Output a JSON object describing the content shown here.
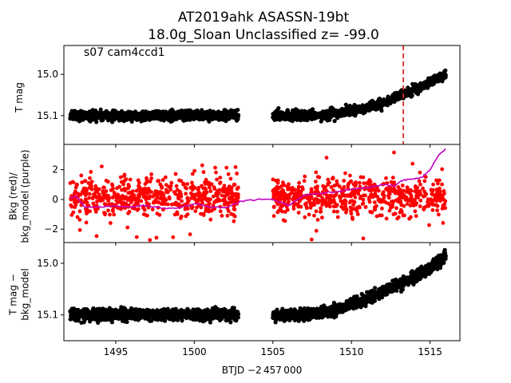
{
  "figure": {
    "title_line1": "AT2019ahk  ASASSN-19bt",
    "title_line2": "18.0g_Sloan Unclassified z= -99.0",
    "annotation": "s07 cam4ccd1",
    "xlabel": "BTJD −2 457 000"
  },
  "chart_data": [
    {
      "type": "scatter",
      "panel": "top",
      "ylabel": "T mag",
      "y_inverted": true,
      "xlim": [
        1491.7,
        1516.9
      ],
      "ylim": [
        15.17,
        14.93
      ],
      "xticks": [
        1495,
        1500,
        1505,
        1510,
        1515
      ],
      "yticks": [
        15.0,
        15.1
      ],
      "ytick_labels": [
        "15.0",
        "15.1"
      ],
      "marker_color": "#000000",
      "vline": {
        "x": 1513.3,
        "color": "#d62728",
        "style": "dashed"
      },
      "segments": [
        {
          "x_range": [
            1492.1,
            1502.8
          ],
          "trend": [
            [
              1492.1,
              15.1
            ],
            [
              1502.8,
              15.1
            ]
          ],
          "scatter": 0.008
        },
        {
          "x_range": [
            1505.0,
            1516.0
          ],
          "trend": [
            [
              1505.0,
              15.1
            ],
            [
              1507.5,
              15.1
            ],
            [
              1509.0,
              15.095
            ],
            [
              1510.5,
              15.085
            ],
            [
              1512.0,
              15.07
            ],
            [
              1513.5,
              15.045
            ],
            [
              1515.0,
              15.02
            ],
            [
              1516.0,
              15.0
            ]
          ],
          "scatter": 0.008
        }
      ]
    },
    {
      "type": "scatter",
      "panel": "middle",
      "ylabel": "Bkg (red)/\nbkg_model (purple)",
      "xlim": [
        1491.7,
        1516.9
      ],
      "ylim": [
        -2.9,
        3.7
      ],
      "yticks": [
        -2,
        0,
        2
      ],
      "ytick_labels": [
        "−2",
        "0",
        "2"
      ],
      "series": [
        {
          "name": "Bkg (red)",
          "kind": "points",
          "color": "#ff0000",
          "segments": [
            [
              1492.1,
              1502.8
            ],
            [
              1505.0,
              1516.0
            ]
          ],
          "level": 0.2,
          "scatter": 0.9
        },
        {
          "name": "bkg_model (purple)",
          "kind": "line",
          "color": "#bf00bf",
          "x": [
            1492.1,
            1492.5,
            1493.0,
            1494.0,
            1495.0,
            1496.0,
            1497.0,
            1498.0,
            1499.0,
            1500.0,
            1501.0,
            1502.0,
            1503.0,
            1504.0,
            1505.0,
            1506.0,
            1507.0,
            1508.0,
            1509.0,
            1510.0,
            1511.0,
            1512.0,
            1512.7,
            1513.3,
            1514.0,
            1514.5,
            1515.0,
            1515.5,
            1516.0
          ],
          "y": [
            0.1,
            0.2,
            -0.5,
            -0.5,
            -0.45,
            -0.5,
            -0.4,
            -0.6,
            -0.55,
            -0.3,
            -0.5,
            -0.55,
            -0.1,
            0.0,
            0.0,
            -0.4,
            0.3,
            0.4,
            0.5,
            0.7,
            0.8,
            1.0,
            0.9,
            1.3,
            1.4,
            1.5,
            2.0,
            2.9,
            3.4
          ]
        }
      ]
    },
    {
      "type": "scatter",
      "panel": "bottom",
      "ylabel": "T mag −\nbkg_model",
      "y_inverted": true,
      "xlim": [
        1491.7,
        1516.9
      ],
      "ylim": [
        15.15,
        14.96
      ],
      "yticks": [
        15.0,
        15.1
      ],
      "ytick_labels": [
        "15.0",
        "15.1"
      ],
      "marker_color": "#000000",
      "segments": [
        {
          "x_range": [
            1492.1,
            1502.8
          ],
          "trend": [
            [
              1492.1,
              15.1
            ],
            [
              1502.8,
              15.1
            ]
          ],
          "scatter": 0.008
        },
        {
          "x_range": [
            1505.0,
            1516.0
          ],
          "trend": [
            [
              1505.0,
              15.1
            ],
            [
              1507.5,
              15.1
            ],
            [
              1509.0,
              15.09
            ],
            [
              1510.5,
              15.075
            ],
            [
              1512.0,
              15.055
            ],
            [
              1513.5,
              15.035
            ],
            [
              1515.0,
              15.01
            ],
            [
              1516.0,
              14.985
            ]
          ],
          "scatter": 0.008
        }
      ]
    }
  ]
}
